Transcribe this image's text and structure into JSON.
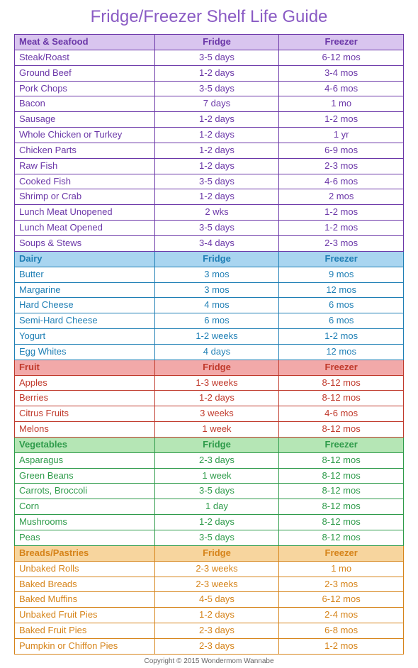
{
  "title": "Fridge/Freezer Shelf Life Guide",
  "title_color": "#8a5bc4",
  "columns": [
    "",
    "Fridge",
    "Freezer"
  ],
  "footer": "Copyright © 2015 Wondermom Wannabe",
  "sections": [
    {
      "name": "Meat & Seafood",
      "header_bg": "#d9c5ef",
      "text_color": "#6b37a8",
      "border_color": "#6b37a8",
      "rows": [
        {
          "label": "Steak/Roast",
          "fridge": "3-5 days",
          "freezer": "6-12 mos"
        },
        {
          "label": "Ground Beef",
          "fridge": "1-2 days",
          "freezer": "3-4 mos"
        },
        {
          "label": "Pork Chops",
          "fridge": "3-5 days",
          "freezer": "4-6 mos"
        },
        {
          "label": "Bacon",
          "fridge": "7 days",
          "freezer": "1 mo"
        },
        {
          "label": "Sausage",
          "fridge": "1-2 days",
          "freezer": "1-2 mos"
        },
        {
          "label": "Whole Chicken or Turkey",
          "fridge": "1-2 days",
          "freezer": "1 yr"
        },
        {
          "label": "Chicken Parts",
          "fridge": "1-2 days",
          "freezer": "6-9 mos"
        },
        {
          "label": "Raw Fish",
          "fridge": "1-2 days",
          "freezer": "2-3 mos"
        },
        {
          "label": "Cooked Fish",
          "fridge": "3-5 days",
          "freezer": "4-6 mos"
        },
        {
          "label": "Shrimp or Crab",
          "fridge": "1-2 days",
          "freezer": "2 mos"
        },
        {
          "label": "Lunch Meat Unopened",
          "fridge": "2 wks",
          "freezer": "1-2 mos"
        },
        {
          "label": "Lunch Meat Opened",
          "fridge": "3-5 days",
          "freezer": "1-2 mos"
        },
        {
          "label": "Soups & Stews",
          "fridge": "3-4 days",
          "freezer": "2-3 mos"
        }
      ]
    },
    {
      "name": "Dairy",
      "header_bg": "#a9d5f0",
      "text_color": "#1f7fb5",
      "border_color": "#1f7fb5",
      "rows": [
        {
          "label": "Butter",
          "fridge": "3 mos",
          "freezer": "9 mos"
        },
        {
          "label": "Margarine",
          "fridge": "3 mos",
          "freezer": "12 mos"
        },
        {
          "label": "Hard Cheese",
          "fridge": "4 mos",
          "freezer": "6 mos"
        },
        {
          "label": "Semi-Hard Cheese",
          "fridge": "6 mos",
          "freezer": "6 mos"
        },
        {
          "label": "Yogurt",
          "fridge": "1-2 weeks",
          "freezer": "1-2 mos"
        },
        {
          "label": "Egg Whites",
          "fridge": "4 days",
          "freezer": "12 mos"
        }
      ]
    },
    {
      "name": "Fruit",
      "header_bg": "#f2a9a9",
      "text_color": "#c0392b",
      "border_color": "#c0392b",
      "rows": [
        {
          "label": "Apples",
          "fridge": "1-3 weeks",
          "freezer": "8-12 mos"
        },
        {
          "label": "Berries",
          "fridge": "1-2 days",
          "freezer": "8-12 mos"
        },
        {
          "label": "Citrus Fruits",
          "fridge": "3 weeks",
          "freezer": "4-6 mos"
        },
        {
          "label": "Melons",
          "fridge": "1 week",
          "freezer": "8-12 mos"
        }
      ]
    },
    {
      "name": "Vegetables",
      "header_bg": "#b5e6b5",
      "text_color": "#2e9b4a",
      "border_color": "#2e9b4a",
      "rows": [
        {
          "label": "Asparagus",
          "fridge": "2-3 days",
          "freezer": "8-12 mos"
        },
        {
          "label": "Green Beans",
          "fridge": "1 week",
          "freezer": "8-12 mos"
        },
        {
          "label": "Carrots, Broccoli",
          "fridge": "3-5 days",
          "freezer": "8-12 mos"
        },
        {
          "label": "Corn",
          "fridge": "1 day",
          "freezer": "8-12 mos"
        },
        {
          "label": "Mushrooms",
          "fridge": "1-2 days",
          "freezer": "8-12 mos"
        },
        {
          "label": "Peas",
          "fridge": "3-5 days",
          "freezer": "8-12 mos"
        }
      ]
    },
    {
      "name": "Breads/Pastries",
      "header_bg": "#f7d59e",
      "text_color": "#d6841a",
      "border_color": "#d6841a",
      "rows": [
        {
          "label": "Unbaked Rolls",
          "fridge": "2-3 weeks",
          "freezer": "1 mo"
        },
        {
          "label": "Baked Breads",
          "fridge": "2-3 weeks",
          "freezer": "2-3 mos"
        },
        {
          "label": "Baked Muffins",
          "fridge": "4-5 days",
          "freezer": "6-12 mos"
        },
        {
          "label": "Unbaked Fruit Pies",
          "fridge": "1-2 days",
          "freezer": "2-4 mos"
        },
        {
          "label": "Baked Fruit Pies",
          "fridge": "2-3 days",
          "freezer": "6-8 mos"
        },
        {
          "label": "Pumpkin or Chiffon Pies",
          "fridge": "2-3 days",
          "freezer": "1-2 mos"
        }
      ]
    }
  ]
}
